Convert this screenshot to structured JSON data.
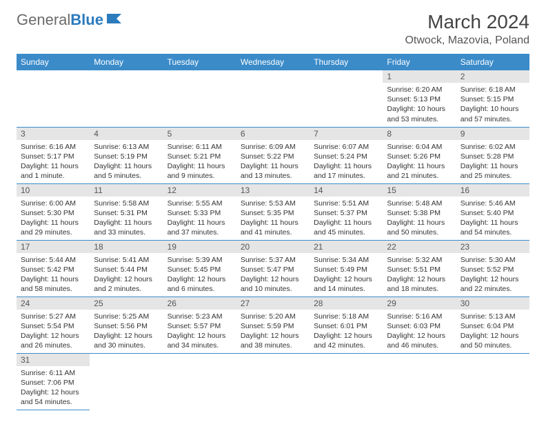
{
  "logo": {
    "text1": "General",
    "text2": "Blue"
  },
  "title": "March 2024",
  "location": "Otwock, Mazovia, Poland",
  "colors": {
    "header_bg": "#3b8bc9",
    "header_text": "#ffffff",
    "daynum_bg": "#e5e5e5",
    "border": "#3b8bc9",
    "logo_accent": "#2b7bbd"
  },
  "weekdays": [
    "Sunday",
    "Monday",
    "Tuesday",
    "Wednesday",
    "Thursday",
    "Friday",
    "Saturday"
  ],
  "days": [
    null,
    null,
    null,
    null,
    null,
    {
      "n": "1",
      "sr": "6:20 AM",
      "ss": "5:13 PM",
      "dl": "10 hours and 53 minutes."
    },
    {
      "n": "2",
      "sr": "6:18 AM",
      "ss": "5:15 PM",
      "dl": "10 hours and 57 minutes."
    },
    {
      "n": "3",
      "sr": "6:16 AM",
      "ss": "5:17 PM",
      "dl": "11 hours and 1 minute."
    },
    {
      "n": "4",
      "sr": "6:13 AM",
      "ss": "5:19 PM",
      "dl": "11 hours and 5 minutes."
    },
    {
      "n": "5",
      "sr": "6:11 AM",
      "ss": "5:21 PM",
      "dl": "11 hours and 9 minutes."
    },
    {
      "n": "6",
      "sr": "6:09 AM",
      "ss": "5:22 PM",
      "dl": "11 hours and 13 minutes."
    },
    {
      "n": "7",
      "sr": "6:07 AM",
      "ss": "5:24 PM",
      "dl": "11 hours and 17 minutes."
    },
    {
      "n": "8",
      "sr": "6:04 AM",
      "ss": "5:26 PM",
      "dl": "11 hours and 21 minutes."
    },
    {
      "n": "9",
      "sr": "6:02 AM",
      "ss": "5:28 PM",
      "dl": "11 hours and 25 minutes."
    },
    {
      "n": "10",
      "sr": "6:00 AM",
      "ss": "5:30 PM",
      "dl": "11 hours and 29 minutes."
    },
    {
      "n": "11",
      "sr": "5:58 AM",
      "ss": "5:31 PM",
      "dl": "11 hours and 33 minutes."
    },
    {
      "n": "12",
      "sr": "5:55 AM",
      "ss": "5:33 PM",
      "dl": "11 hours and 37 minutes."
    },
    {
      "n": "13",
      "sr": "5:53 AM",
      "ss": "5:35 PM",
      "dl": "11 hours and 41 minutes."
    },
    {
      "n": "14",
      "sr": "5:51 AM",
      "ss": "5:37 PM",
      "dl": "11 hours and 45 minutes."
    },
    {
      "n": "15",
      "sr": "5:48 AM",
      "ss": "5:38 PM",
      "dl": "11 hours and 50 minutes."
    },
    {
      "n": "16",
      "sr": "5:46 AM",
      "ss": "5:40 PM",
      "dl": "11 hours and 54 minutes."
    },
    {
      "n": "17",
      "sr": "5:44 AM",
      "ss": "5:42 PM",
      "dl": "11 hours and 58 minutes."
    },
    {
      "n": "18",
      "sr": "5:41 AM",
      "ss": "5:44 PM",
      "dl": "12 hours and 2 minutes."
    },
    {
      "n": "19",
      "sr": "5:39 AM",
      "ss": "5:45 PM",
      "dl": "12 hours and 6 minutes."
    },
    {
      "n": "20",
      "sr": "5:37 AM",
      "ss": "5:47 PM",
      "dl": "12 hours and 10 minutes."
    },
    {
      "n": "21",
      "sr": "5:34 AM",
      "ss": "5:49 PM",
      "dl": "12 hours and 14 minutes."
    },
    {
      "n": "22",
      "sr": "5:32 AM",
      "ss": "5:51 PM",
      "dl": "12 hours and 18 minutes."
    },
    {
      "n": "23",
      "sr": "5:30 AM",
      "ss": "5:52 PM",
      "dl": "12 hours and 22 minutes."
    },
    {
      "n": "24",
      "sr": "5:27 AM",
      "ss": "5:54 PM",
      "dl": "12 hours and 26 minutes."
    },
    {
      "n": "25",
      "sr": "5:25 AM",
      "ss": "5:56 PM",
      "dl": "12 hours and 30 minutes."
    },
    {
      "n": "26",
      "sr": "5:23 AM",
      "ss": "5:57 PM",
      "dl": "12 hours and 34 minutes."
    },
    {
      "n": "27",
      "sr": "5:20 AM",
      "ss": "5:59 PM",
      "dl": "12 hours and 38 minutes."
    },
    {
      "n": "28",
      "sr": "5:18 AM",
      "ss": "6:01 PM",
      "dl": "12 hours and 42 minutes."
    },
    {
      "n": "29",
      "sr": "5:16 AM",
      "ss": "6:03 PM",
      "dl": "12 hours and 46 minutes."
    },
    {
      "n": "30",
      "sr": "5:13 AM",
      "ss": "6:04 PM",
      "dl": "12 hours and 50 minutes."
    },
    {
      "n": "31",
      "sr": "6:11 AM",
      "ss": "7:06 PM",
      "dl": "12 hours and 54 minutes."
    },
    null,
    null,
    null,
    null,
    null,
    null
  ],
  "labels": {
    "sunrise": "Sunrise: ",
    "sunset": "Sunset: ",
    "daylight": "Daylight: "
  }
}
